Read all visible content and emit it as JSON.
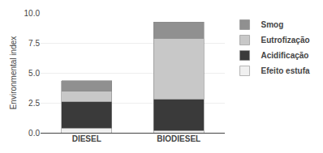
{
  "chart_data": {
    "type": "bar",
    "stacked": true,
    "categories": [
      "DIESEL",
      "BIODIESEL"
    ],
    "series": [
      {
        "name": "Efeito estufa",
        "color": "#f0f0f0",
        "values": [
          0.4,
          0.2
        ]
      },
      {
        "name": "Acidificação",
        "color": "#3a3a3a",
        "values": [
          2.2,
          2.6
        ]
      },
      {
        "name": "Eutrofização",
        "color": "#c8c8c8",
        "values": [
          0.85,
          5.1
        ]
      },
      {
        "name": "Smog",
        "color": "#909090",
        "values": [
          0.9,
          1.35
        ]
      }
    ],
    "ylabel": "Environmental index",
    "ylim": [
      0,
      10
    ],
    "yticks": [
      {
        "value": 0,
        "label": "0.0"
      },
      2.5,
      {
        "value": 5,
        "label": "5.0"
      },
      7.5,
      {
        "value": 10,
        "label": "10.0"
      }
    ],
    "grid": true,
    "legend": "right"
  }
}
